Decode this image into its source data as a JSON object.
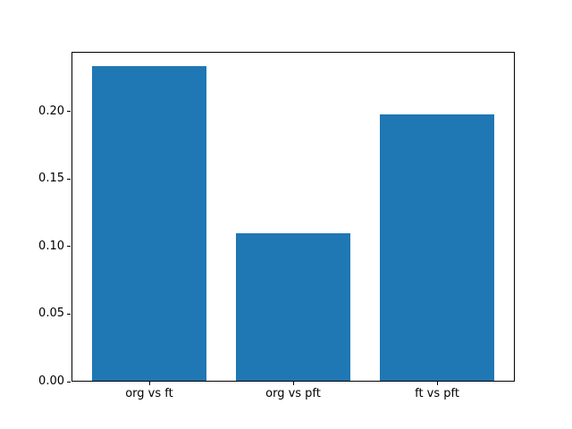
{
  "chart_data": {
    "type": "bar",
    "title": "",
    "xlabel": "",
    "ylabel": "",
    "categories": [
      "org vs ft",
      "org vs pft",
      "ft vs pft"
    ],
    "values": [
      0.233,
      0.109,
      0.197
    ],
    "ylim": [
      0,
      0.244
    ],
    "yticks": [
      0.0,
      0.05,
      0.1,
      0.15,
      0.2
    ],
    "ytick_labels": [
      "0.00",
      "0.05",
      "0.10",
      "0.15",
      "0.20"
    ],
    "bar_color": "#1f77b4",
    "spine_color": "#000000",
    "text_color": "#000000",
    "grid": false,
    "legend": null
  }
}
